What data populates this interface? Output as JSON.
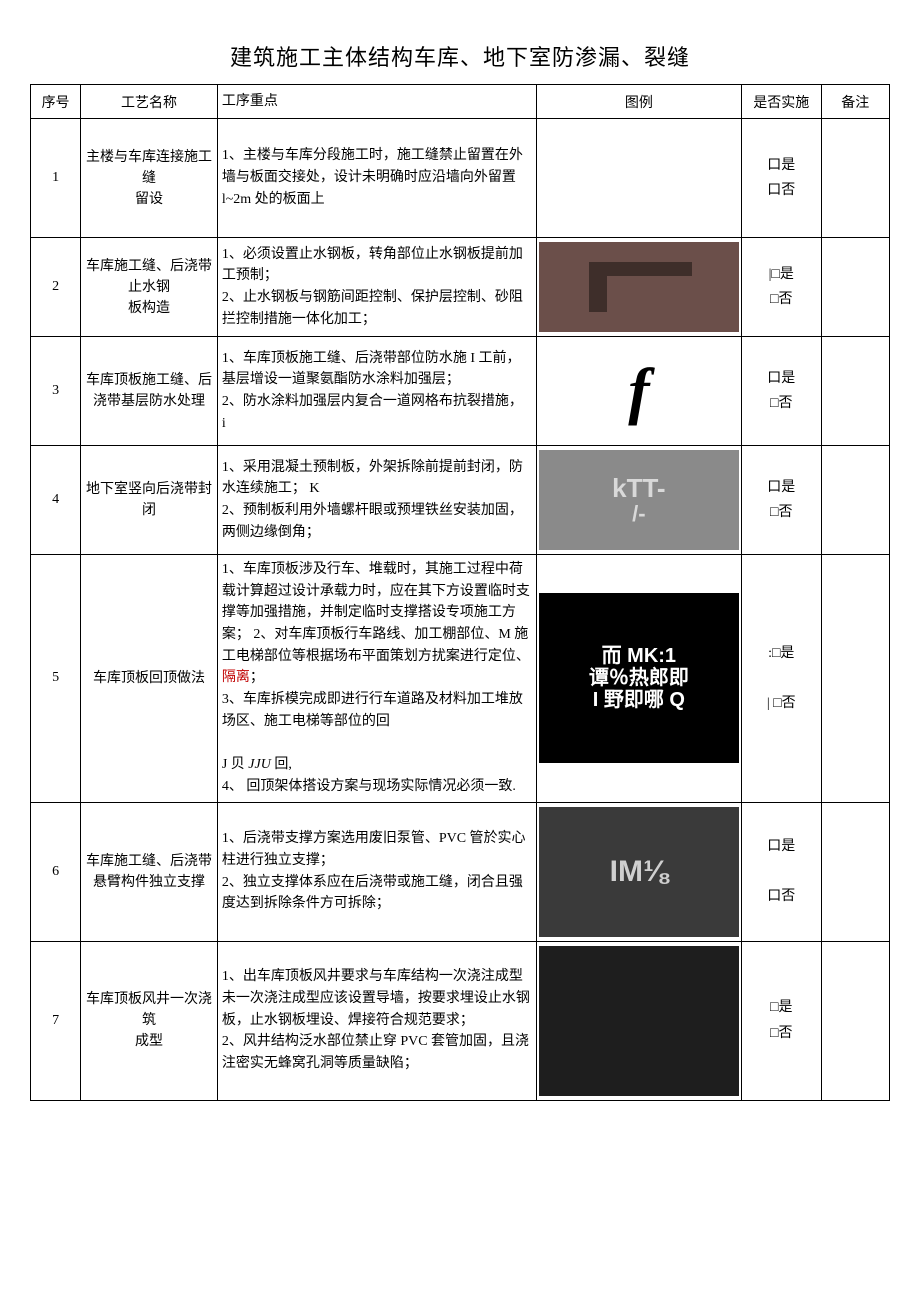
{
  "title": "建筑施工主体结构车库、地下室防渗漏、裂缝",
  "headers": {
    "seq": "序号",
    "name": "工艺名称",
    "key": "工序重点",
    "fig": "图例",
    "impl": "是否实施",
    "note": "备注"
  },
  "impl_text": {
    "yes": "口是",
    "no": "口否",
    "yes_sq": "□是",
    "no_sq": "□否",
    "prefix_bar": "|",
    "colon_yes": ":□是",
    "bar_no": "| □否"
  },
  "figure_placeholders": {
    "r1": "",
    "r2": "",
    "r3": "f",
    "r4_a": "kTT-",
    "r4_b": "K",
    "r4_c": "/-",
    "r5_a": "而 MK:1",
    "r5_b": "谭％热郎即",
    "r5_c": "I 野即哪 Q",
    "r6": "IM⅛",
    "r7": ""
  },
  "colors": {
    "fig_r2_bg": "#6b4f4a",
    "fig_r3_bg": "#ffffff",
    "fig_r3_fg": "#000000",
    "fig_r4_bg": "#8a8a8a",
    "fig_r5_bg": "#000000",
    "fig_r6_bg": "#3a3a3a",
    "fig_r7_bg": "#1e1e1e"
  },
  "rows": [
    {
      "seq": "1",
      "name": "主楼与车库连接施工缝\n留设",
      "key": "1、主楼与车库分段施工时，施工缝禁止留置在外墙与板面交接处，设计未明确时应沿墙向外留置l~2m 处的板面上",
      "impl": "口是\n口否"
    },
    {
      "seq": "2",
      "name": "车库施工缝、后浇带止水钢\n板构造",
      "key": "1、必须设置止水钢板，转角部位止水钢板提前加工预制；\n2、止水钢板与钢筋间距控制、保护层控制、砂阻拦控制措施一体化加工；",
      "impl": "|□是\n□否"
    },
    {
      "seq": "3",
      "name": "车库顶板施工缝、后浇带基层防水处理",
      "key": "1、车库顶板施工缝、后浇带部位防水施 I 工前，基层增设一道聚氨酯防水涂料加强层；\n2、防水涂料加强层内复合一道网格布抗裂措施，\n                                                    i",
      "impl": "口是\n□否"
    },
    {
      "seq": "4",
      "name": "地下室竖向后浇带封闭",
      "key": "1、采用混凝土预制板，外架拆除前提前封闭，防水连续施工；                                          K\n2、预制板利用外墙螺杆眼或预埋铁丝安装加固，两侧边缘倒角；",
      "impl": "口是\n□否"
    },
    {
      "seq": "5",
      "name": "车库顶板回顶做法",
      "key": "1、车库顶板涉及行车、堆载时，其施工过程中荷载计算超过设计承载力时，应在其下方设置临时支撑等加强措施，并制定临时支撑搭设专项施工方案； 2、对车库顶板行车路线、加工棚部位、M 施工电梯部位等根据场布平面策划方扰案进行定位、<span class=\"red\">隔离</span>；\n3、车库拆模完成即进行行车道路及材料加工堆放场区、施工电梯等部位的回\n\nJ 贝 <i>JJU</i> 回,\n4、     回顶架体搭设方案与现场实际情况必须一致.",
      "impl": ":□是\n\n| □否"
    },
    {
      "seq": "6",
      "name": "车库施工缝、后浇带悬臂构件独立支撑",
      "key": "1、后浇带支撑方案选用废旧泵管、PVC 管於实心柱进行独立支撑；\n2、独立支撑体系应在后浇带或施工缝，闭合且强度达到拆除条件方可拆除；",
      "impl": "口是\n\n口否"
    },
    {
      "seq": "7",
      "name": "车库顶板风井一次浇筑\n成型",
      "key": "1、出车库顶板风井要求与车库结构一次浇注成型未一次浇注成型应该设置导墙，按要求埋设止水钢板，止水钢板埋设、焊接符合规范要求；\n2、风井结构泛水部位禁止穿 PVC 套管加固，且浇注密实无蜂窝孔洞等质量缺陷；",
      "impl": "□是\n□否"
    }
  ]
}
